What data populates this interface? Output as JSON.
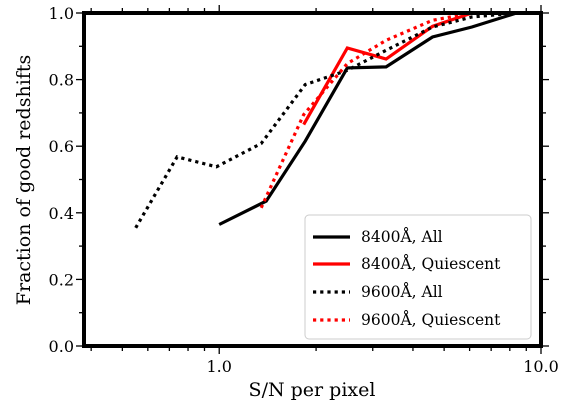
{
  "chart_data": {
    "type": "line",
    "xlabel": "S/N per pixel",
    "ylabel": "Fraction of good redshifts",
    "xscale": "log",
    "xlim": [
      0.38,
      10.0
    ],
    "ylim": [
      0.0,
      1.0
    ],
    "x_ticks": [
      {
        "value": 1.0,
        "label": "1.0"
      },
      {
        "value": 10.0,
        "label": "10.0"
      }
    ],
    "y_ticks": [
      {
        "value": 0.0,
        "label": "0.0"
      },
      {
        "value": 0.2,
        "label": "0.2"
      },
      {
        "value": 0.4,
        "label": "0.4"
      },
      {
        "value": 0.6,
        "label": "0.6"
      },
      {
        "value": 0.8,
        "label": "0.8"
      },
      {
        "value": 1.0,
        "label": "1.0"
      }
    ],
    "grid": false,
    "legend_position": "lower-right",
    "series": [
      {
        "name": "8400Å, All",
        "color": "#000000",
        "dash": "solid",
        "x": [
          1.0,
          1.4,
          1.85,
          2.5,
          3.3,
          4.6,
          6.1,
          8.4,
          10.0
        ],
        "y": [
          0.365,
          0.435,
          0.615,
          0.835,
          0.838,
          0.928,
          0.958,
          1.0,
          1.0
        ]
      },
      {
        "name": "8400Å, Quiescent",
        "color": "#ff0000",
        "dash": "solid",
        "x": [
          1.83,
          2.5,
          3.3,
          4.6,
          6.1
        ],
        "y": [
          0.665,
          0.895,
          0.862,
          0.96,
          1.0
        ]
      },
      {
        "name": "9600Å, All",
        "color": "#000000",
        "dash": "dotted",
        "x": [
          0.55,
          0.74,
          0.98,
          1.35,
          1.85,
          2.5,
          3.3,
          4.6,
          6.1,
          8.4
        ],
        "y": [
          0.355,
          0.568,
          0.538,
          0.608,
          0.785,
          0.828,
          0.888,
          0.958,
          0.988,
          1.0
        ]
      },
      {
        "name": "9600Å, Quiescent",
        "color": "#ff0000",
        "dash": "dotted",
        "x": [
          1.35,
          1.83,
          2.5,
          3.3,
          4.6,
          6.1
        ],
        "y": [
          0.415,
          0.695,
          0.848,
          0.918,
          0.978,
          1.0
        ]
      }
    ]
  }
}
